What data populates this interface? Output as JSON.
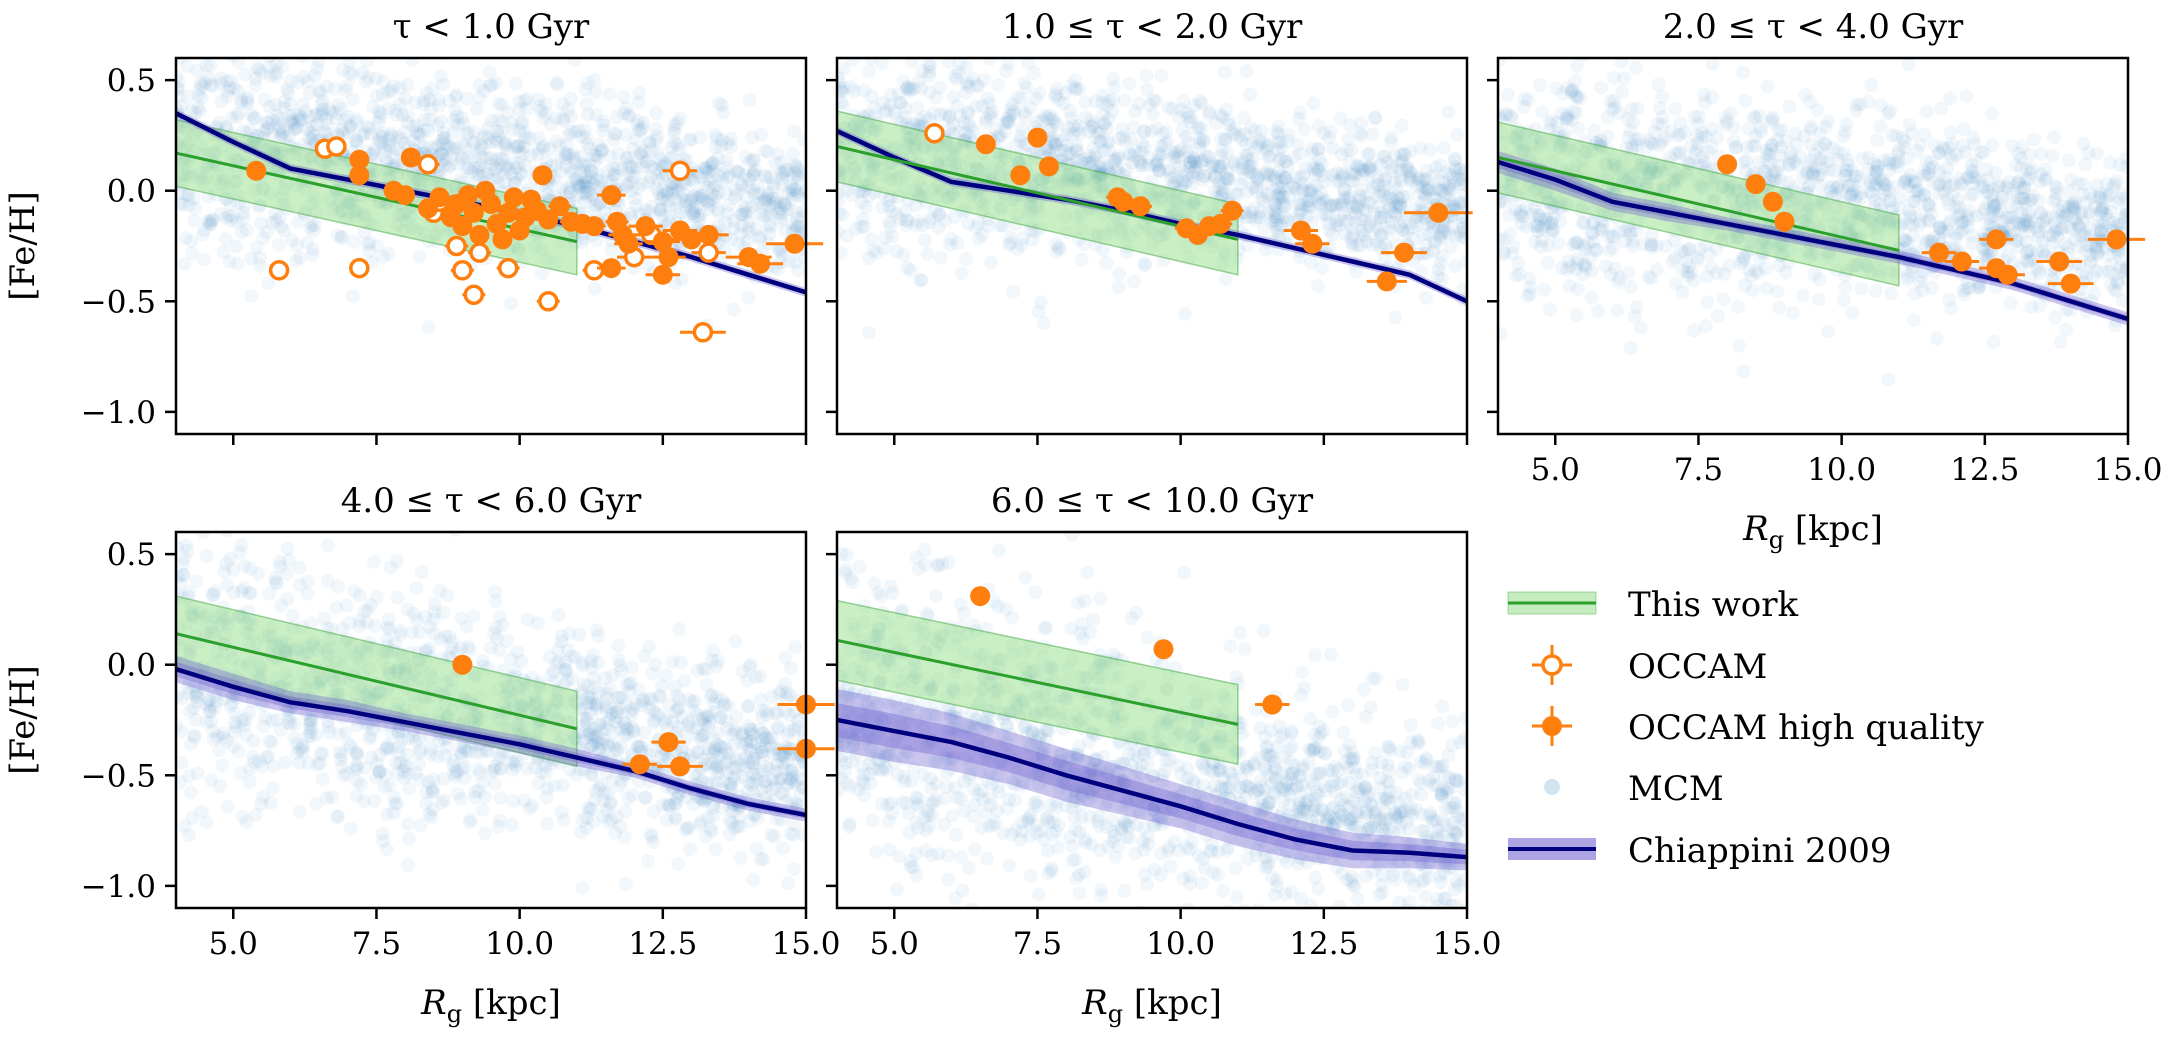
{
  "figure": {
    "legend": [
      {
        "key": "this_work",
        "label": "This work",
        "color": "#2ca02c",
        "band_color": "#98df8a"
      },
      {
        "key": "occam",
        "label": "OCCAM",
        "color": "#ff7f0e"
      },
      {
        "key": "occam_hq",
        "label": "OCCAM high quality",
        "color": "#ff7f0e"
      },
      {
        "key": "mcm",
        "label": "MCM",
        "color": "#1f77b4"
      },
      {
        "key": "chiappini",
        "label": "Chiappini 2009",
        "color": "#00007f",
        "band_color": "#6a5acd"
      }
    ]
  },
  "chart_data": [
    {
      "type": "scatter",
      "title": "τ < 1.0 Gyr",
      "xlabel": "",
      "ylabel": "[Fe/H]",
      "xlim": [
        4.0,
        15.0
      ],
      "ylim": [
        -1.1,
        0.6
      ],
      "xticks": [
        "5.0",
        "7.5",
        "10.0",
        "12.5",
        "15.0"
      ],
      "xtick_values": [
        5.0,
        7.5,
        10.0,
        12.5,
        15.0
      ],
      "yticks": [
        "0.5",
        "0.0",
        "−0.5",
        "−1.0"
      ],
      "ytick_values": [
        0.5,
        0.0,
        -0.5,
        -1.0
      ],
      "show_xticklabels": false,
      "show_yticklabels": true,
      "mcm": {
        "center": [
          0.25,
          -0.06
        ],
        "spread": 0.22,
        "xmin": 4.0,
        "xmax": 15.0
      },
      "this_work": {
        "x": [
          4.0,
          11.0
        ],
        "y": [
          0.17,
          -0.23
        ],
        "band_halfwidth": 0.15
      },
      "chiappini": {
        "x": [
          4,
          5,
          6,
          7,
          8,
          9,
          10,
          11,
          12,
          13,
          14,
          15
        ],
        "y": [
          0.35,
          0.22,
          0.1,
          0.05,
          0.0,
          -0.05,
          -0.1,
          -0.16,
          -0.23,
          -0.3,
          -0.38,
          -0.46
        ],
        "band": [
          0.02,
          0.02,
          0.02,
          0.02,
          0.02,
          0.02,
          0.02,
          0.02,
          0.02,
          0.02,
          0.02,
          0.02
        ]
      },
      "occam": [
        {
          "x": 6.6,
          "y": 0.19,
          "xerr": 0.15
        },
        {
          "x": 6.8,
          "y": 0.2,
          "xerr": 0.15
        },
        {
          "x": 5.8,
          "y": -0.36,
          "xerr": 0.15
        },
        {
          "x": 7.2,
          "y": -0.35,
          "xerr": 0.15
        },
        {
          "x": 8.4,
          "y": 0.12,
          "xerr": 0.2
        },
        {
          "x": 8.5,
          "y": -0.1,
          "xerr": 0.2
        },
        {
          "x": 8.9,
          "y": -0.25,
          "xerr": 0.2
        },
        {
          "x": 9.3,
          "y": -0.28,
          "xerr": 0.2
        },
        {
          "x": 9.0,
          "y": -0.36,
          "xerr": 0.2
        },
        {
          "x": 9.2,
          "y": -0.47,
          "xerr": 0.2
        },
        {
          "x": 9.8,
          "y": -0.35,
          "xerr": 0.2
        },
        {
          "x": 10.5,
          "y": -0.5,
          "xerr": 0.2
        },
        {
          "x": 11.3,
          "y": -0.36,
          "xerr": 0.2
        },
        {
          "x": 12.0,
          "y": -0.3,
          "xerr": 0.3
        },
        {
          "x": 12.3,
          "y": -0.2,
          "xerr": 0.3
        },
        {
          "x": 12.8,
          "y": 0.09,
          "xerr": 0.3
        },
        {
          "x": 13.3,
          "y": -0.28,
          "xerr": 0.3
        },
        {
          "x": 13.2,
          "y": -0.64,
          "xerr": 0.4
        },
        {
          "x": 8.6,
          "y": -0.05,
          "xerr": 0.2
        }
      ],
      "occam_hq": [
        {
          "x": 5.4,
          "y": 0.09,
          "xerr": 0.1
        },
        {
          "x": 7.2,
          "y": 0.14,
          "xerr": 0.15
        },
        {
          "x": 7.2,
          "y": 0.07,
          "xerr": 0.15
        },
        {
          "x": 7.8,
          "y": 0.0,
          "xerr": 0.15
        },
        {
          "x": 8.1,
          "y": 0.15,
          "xerr": 0.15
        },
        {
          "x": 8.0,
          "y": -0.02,
          "xerr": 0.15
        },
        {
          "x": 8.4,
          "y": -0.08,
          "xerr": 0.15
        },
        {
          "x": 8.6,
          "y": -0.03,
          "xerr": 0.15
        },
        {
          "x": 8.8,
          "y": -0.12,
          "xerr": 0.15
        },
        {
          "x": 8.9,
          "y": -0.06,
          "xerr": 0.15
        },
        {
          "x": 9.0,
          "y": -0.16,
          "xerr": 0.15
        },
        {
          "x": 9.1,
          "y": -0.02,
          "xerr": 0.15
        },
        {
          "x": 9.2,
          "y": -0.1,
          "xerr": 0.15
        },
        {
          "x": 9.3,
          "y": -0.2,
          "xerr": 0.15
        },
        {
          "x": 9.4,
          "y": 0.0,
          "xerr": 0.15
        },
        {
          "x": 9.5,
          "y": -0.06,
          "xerr": 0.15
        },
        {
          "x": 9.6,
          "y": -0.15,
          "xerr": 0.15
        },
        {
          "x": 9.7,
          "y": -0.22,
          "xerr": 0.15
        },
        {
          "x": 9.8,
          "y": -0.1,
          "xerr": 0.15
        },
        {
          "x": 9.9,
          "y": -0.03,
          "xerr": 0.15
        },
        {
          "x": 10.0,
          "y": -0.18,
          "xerr": 0.15
        },
        {
          "x": 10.1,
          "y": -0.12,
          "xerr": 0.15
        },
        {
          "x": 10.2,
          "y": -0.04,
          "xerr": 0.15
        },
        {
          "x": 10.3,
          "y": -0.09,
          "xerr": 0.15
        },
        {
          "x": 10.4,
          "y": 0.07,
          "xerr": 0.15
        },
        {
          "x": 10.5,
          "y": -0.13,
          "xerr": 0.15
        },
        {
          "x": 10.7,
          "y": -0.07,
          "xerr": 0.2
        },
        {
          "x": 10.9,
          "y": -0.14,
          "xerr": 0.2
        },
        {
          "x": 11.1,
          "y": -0.15,
          "xerr": 0.2
        },
        {
          "x": 11.3,
          "y": -0.16,
          "xerr": 0.2
        },
        {
          "x": 11.6,
          "y": -0.02,
          "xerr": 0.25
        },
        {
          "x": 11.7,
          "y": -0.14,
          "xerr": 0.2
        },
        {
          "x": 11.8,
          "y": -0.2,
          "xerr": 0.25
        },
        {
          "x": 11.9,
          "y": -0.24,
          "xerr": 0.25
        },
        {
          "x": 11.6,
          "y": -0.35,
          "xerr": 0.25
        },
        {
          "x": 12.2,
          "y": -0.16,
          "xerr": 0.3
        },
        {
          "x": 12.5,
          "y": -0.23,
          "xerr": 0.3
        },
        {
          "x": 12.6,
          "y": -0.3,
          "xerr": 0.3
        },
        {
          "x": 12.8,
          "y": -0.18,
          "xerr": 0.3
        },
        {
          "x": 13.0,
          "y": -0.22,
          "xerr": 0.35
        },
        {
          "x": 12.5,
          "y": -0.38,
          "xerr": 0.3
        },
        {
          "x": 13.3,
          "y": -0.2,
          "xerr": 0.35
        },
        {
          "x": 14.0,
          "y": -0.3,
          "xerr": 0.4
        },
        {
          "x": 14.2,
          "y": -0.33,
          "xerr": 0.4
        },
        {
          "x": 14.8,
          "y": -0.24,
          "xerr": 0.5
        }
      ]
    },
    {
      "type": "scatter",
      "title": "1.0 ≤ τ < 2.0 Gyr",
      "xlabel": "",
      "ylabel": "",
      "xlim": [
        4.0,
        15.0
      ],
      "ylim": [
        -1.1,
        0.6
      ],
      "xticks": [
        "5.0",
        "7.5",
        "10.0",
        "12.5",
        "15.0"
      ],
      "xtick_values": [
        5.0,
        7.5,
        10.0,
        12.5,
        15.0
      ],
      "yticks": [
        "0.5",
        "0.0",
        "−0.5",
        "−1.0"
      ],
      "ytick_values": [
        0.5,
        0.0,
        -0.5,
        -1.0
      ],
      "show_xticklabels": false,
      "show_yticklabels": false,
      "mcm": {
        "center": [
          0.22,
          -0.08
        ],
        "spread": 0.22,
        "xmin": 4.0,
        "xmax": 15.0
      },
      "this_work": {
        "x": [
          4.0,
          11.0
        ],
        "y": [
          0.2,
          -0.22
        ],
        "band_halfwidth": 0.16
      },
      "chiappini": {
        "x": [
          4,
          5,
          6,
          7,
          8,
          9,
          10,
          11,
          12,
          13,
          14,
          15
        ],
        "y": [
          0.27,
          0.15,
          0.04,
          0.0,
          -0.04,
          -0.09,
          -0.15,
          -0.2,
          -0.26,
          -0.32,
          -0.38,
          -0.5
        ],
        "band": [
          0.02,
          0.02,
          0.02,
          0.02,
          0.02,
          0.02,
          0.02,
          0.02,
          0.02,
          0.02,
          0.02,
          0.02
        ]
      },
      "occam": [
        {
          "x": 5.7,
          "y": 0.26,
          "xerr": 0.15
        }
      ],
      "occam_hq": [
        {
          "x": 6.6,
          "y": 0.21,
          "xerr": 0.15
        },
        {
          "x": 7.5,
          "y": 0.24,
          "xerr": 0.15
        },
        {
          "x": 7.2,
          "y": 0.07,
          "xerr": 0.15
        },
        {
          "x": 7.7,
          "y": 0.11,
          "xerr": 0.15
        },
        {
          "x": 8.9,
          "y": -0.03,
          "xerr": 0.2
        },
        {
          "x": 9.0,
          "y": -0.05,
          "xerr": 0.2
        },
        {
          "x": 9.3,
          "y": -0.07,
          "xerr": 0.2
        },
        {
          "x": 10.1,
          "y": -0.17,
          "xerr": 0.2
        },
        {
          "x": 10.3,
          "y": -0.2,
          "xerr": 0.2
        },
        {
          "x": 10.5,
          "y": -0.16,
          "xerr": 0.2
        },
        {
          "x": 10.7,
          "y": -0.15,
          "xerr": 0.2
        },
        {
          "x": 10.9,
          "y": -0.09,
          "xerr": 0.2
        },
        {
          "x": 12.1,
          "y": -0.18,
          "xerr": 0.3
        },
        {
          "x": 12.3,
          "y": -0.24,
          "xerr": 0.3
        },
        {
          "x": 13.6,
          "y": -0.41,
          "xerr": 0.35
        },
        {
          "x": 13.9,
          "y": -0.28,
          "xerr": 0.4
        },
        {
          "x": 14.5,
          "y": -0.1,
          "xerr": 0.6
        }
      ]
    },
    {
      "type": "scatter",
      "title": "2.0 ≤ τ < 4.0 Gyr",
      "xlabel": "Rg [kpc]",
      "ylabel": "",
      "xlim": [
        4.0,
        15.0
      ],
      "ylim": [
        -1.1,
        0.6
      ],
      "xticks": [
        "5.0",
        "7.5",
        "10.0",
        "12.5",
        "15.0"
      ],
      "xtick_values": [
        5.0,
        7.5,
        10.0,
        12.5,
        15.0
      ],
      "yticks": [
        "0.5",
        "0.0",
        "−0.5",
        "−1.0"
      ],
      "ytick_values": [
        0.5,
        0.0,
        -0.5,
        -1.0
      ],
      "show_xticklabels": true,
      "show_yticklabels": false,
      "mcm": {
        "center": [
          0.1,
          -0.2
        ],
        "spread": 0.24,
        "xmin": 4.0,
        "xmax": 15.0
      },
      "this_work": {
        "x": [
          4.0,
          11.0
        ],
        "y": [
          0.15,
          -0.27
        ],
        "band_halfwidth": 0.16
      },
      "chiappini": {
        "x": [
          4,
          5,
          6,
          7,
          8,
          9,
          10,
          11,
          12,
          13,
          14,
          15
        ],
        "y": [
          0.13,
          0.05,
          -0.05,
          -0.1,
          -0.15,
          -0.2,
          -0.25,
          -0.3,
          -0.36,
          -0.42,
          -0.5,
          -0.58
        ],
        "band": [
          0.05,
          0.05,
          0.04,
          0.04,
          0.03,
          0.03,
          0.03,
          0.03,
          0.03,
          0.03,
          0.03,
          0.03
        ]
      },
      "occam": [],
      "occam_hq": [
        {
          "x": 8.0,
          "y": 0.12,
          "xerr": 0.15
        },
        {
          "x": 8.5,
          "y": 0.03,
          "xerr": 0.15
        },
        {
          "x": 8.8,
          "y": -0.05,
          "xerr": 0.15
        },
        {
          "x": 9.0,
          "y": -0.14,
          "xerr": 0.15
        },
        {
          "x": 11.7,
          "y": -0.28,
          "xerr": 0.3
        },
        {
          "x": 12.1,
          "y": -0.32,
          "xerr": 0.3
        },
        {
          "x": 12.7,
          "y": -0.22,
          "xerr": 0.3
        },
        {
          "x": 12.7,
          "y": -0.35,
          "xerr": 0.3
        },
        {
          "x": 12.9,
          "y": -0.38,
          "xerr": 0.3
        },
        {
          "x": 13.8,
          "y": -0.32,
          "xerr": 0.4
        },
        {
          "x": 14.0,
          "y": -0.42,
          "xerr": 0.4
        },
        {
          "x": 14.8,
          "y": -0.22,
          "xerr": 0.5
        }
      ]
    },
    {
      "type": "scatter",
      "title": "4.0 ≤ τ < 6.0 Gyr",
      "xlabel": "Rg [kpc]",
      "ylabel": "[Fe/H]",
      "xlim": [
        4.0,
        15.0
      ],
      "ylim": [
        -1.1,
        0.6
      ],
      "xticks": [
        "5.0",
        "7.5",
        "10.0",
        "12.5",
        "15.0"
      ],
      "xtick_values": [
        5.0,
        7.5,
        10.0,
        12.5,
        15.0
      ],
      "yticks": [
        "0.5",
        "0.0",
        "−0.5",
        "−1.0"
      ],
      "ytick_values": [
        0.5,
        0.0,
        -0.5,
        -1.0
      ],
      "show_xticklabels": true,
      "show_yticklabels": true,
      "mcm": {
        "center": [
          0.0,
          -0.5
        ],
        "spread": 0.26,
        "xmin": 4.0,
        "xmax": 15.0
      },
      "this_work": {
        "x": [
          4.0,
          11.0
        ],
        "y": [
          0.14,
          -0.29
        ],
        "band_halfwidth": 0.17
      },
      "chiappini": {
        "x": [
          4,
          5,
          6,
          7,
          8,
          9,
          10,
          11,
          12,
          13,
          14,
          15
        ],
        "y": [
          -0.02,
          -0.1,
          -0.17,
          -0.21,
          -0.26,
          -0.31,
          -0.36,
          -0.42,
          -0.48,
          -0.56,
          -0.63,
          -0.68
        ],
        "band": [
          0.06,
          0.06,
          0.05,
          0.05,
          0.04,
          0.04,
          0.04,
          0.04,
          0.03,
          0.03,
          0.03,
          0.03
        ]
      },
      "occam": [],
      "occam_hq": [
        {
          "x": 9.0,
          "y": 0.0,
          "xerr": 0.15
        },
        {
          "x": 12.1,
          "y": -0.45,
          "xerr": 0.3
        },
        {
          "x": 12.6,
          "y": -0.35,
          "xerr": 0.3
        },
        {
          "x": 12.8,
          "y": -0.46,
          "xerr": 0.4
        },
        {
          "x": 15.0,
          "y": -0.18,
          "xerr": 0.5
        },
        {
          "x": 15.0,
          "y": -0.38,
          "xerr": 0.5
        }
      ]
    },
    {
      "type": "scatter",
      "title": "6.0 ≤ τ < 10.0 Gyr",
      "xlabel": "Rg [kpc]",
      "ylabel": "",
      "xlim": [
        4.0,
        15.0
      ],
      "ylim": [
        -1.1,
        0.6
      ],
      "xticks": [
        "5.0",
        "7.5",
        "10.0",
        "12.5",
        "15.0"
      ],
      "xtick_values": [
        5.0,
        7.5,
        10.0,
        12.5,
        15.0
      ],
      "yticks": [
        "0.5",
        "0.0",
        "−0.5",
        "−1.0"
      ],
      "ytick_values": [
        0.5,
        0.0,
        -0.5,
        -1.0
      ],
      "show_xticklabels": true,
      "show_yticklabels": false,
      "mcm": {
        "center": [
          -0.2,
          -0.75
        ],
        "spread": 0.3,
        "xmin": 4.0,
        "xmax": 15.0
      },
      "this_work": {
        "x": [
          4.0,
          11.0
        ],
        "y": [
          0.11,
          -0.27
        ],
        "band_halfwidth": 0.18
      },
      "chiappini": {
        "x": [
          4,
          5,
          6,
          7,
          8,
          9,
          10,
          11,
          12,
          13,
          14,
          15
        ],
        "y": [
          -0.25,
          -0.3,
          -0.35,
          -0.42,
          -0.5,
          -0.57,
          -0.64,
          -0.72,
          -0.79,
          -0.84,
          -0.85,
          -0.87
        ],
        "band": [
          0.14,
          0.14,
          0.13,
          0.12,
          0.12,
          0.11,
          0.1,
          0.1,
          0.09,
          0.08,
          0.07,
          0.06
        ]
      },
      "occam": [],
      "occam_hq": [
        {
          "x": 6.5,
          "y": 0.31,
          "xerr": 0.1
        },
        {
          "x": 9.7,
          "y": 0.07,
          "xerr": 0.15
        },
        {
          "x": 11.6,
          "y": -0.18,
          "xerr": 0.3
        }
      ]
    }
  ]
}
